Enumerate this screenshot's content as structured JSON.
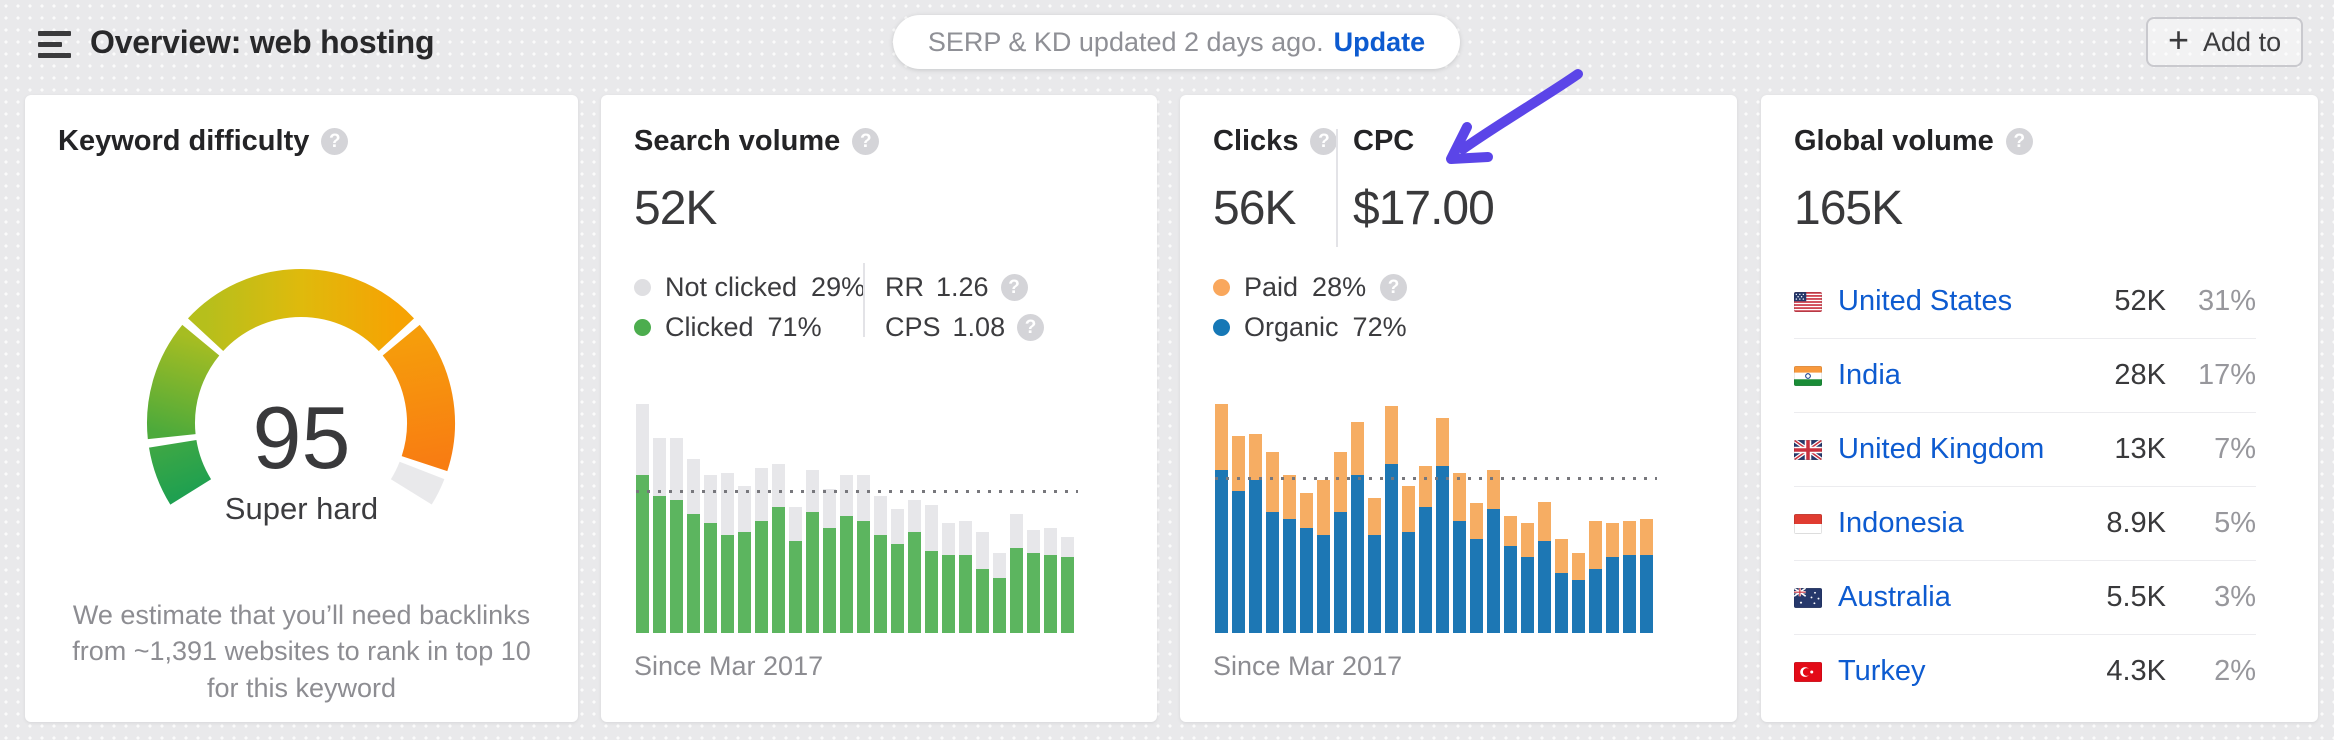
{
  "header": {
    "title": "Overview: web hosting",
    "update_pill": {
      "text": "SERP & KD updated 2 days ago.",
      "action_label": "Update"
    },
    "add_button": {
      "plus": "+",
      "label": "Add to"
    }
  },
  "annotation": {
    "type": "hand-drawn-arrow",
    "points_at": "CPC value",
    "color": "#5b45e8"
  },
  "cards": {
    "keyword_difficulty": {
      "title": "Keyword difficulty",
      "value": "95",
      "level": "Super hard",
      "note": "We estimate that you’ll need backlinks from ~1,391 websites to rank in top 10 for this keyword",
      "gauge": {
        "min": 0,
        "max": 100,
        "value": 95,
        "segments": [
          {
            "range": [
              0,
              10
            ],
            "colors": [
              "#1fa050",
              "#3ca745"
            ]
          },
          {
            "range": [
              10,
              30
            ],
            "colors": [
              "#4caa3b",
              "#a6bd22"
            ]
          },
          {
            "range": [
              30,
              70
            ],
            "colors": [
              "#b6bf1c",
              "#f6a303"
            ]
          },
          {
            "range": [
              70,
              95
            ],
            "colors": [
              "#f69d0b",
              "#f87d12"
            ]
          },
          {
            "range": [
              95,
              100
            ],
            "colors": [
              "#e9e9eb",
              "#e9e9eb"
            ],
            "label": "unfilled remainder"
          }
        ]
      }
    },
    "search_volume": {
      "title": "Search volume",
      "value": "52K",
      "legend": [
        {
          "label": "Not clicked",
          "pct": "29%",
          "color": "#dfdfe2"
        },
        {
          "label": "Clicked",
          "pct": "71%",
          "color": "#4cad4e"
        }
      ],
      "metrics": [
        {
          "label": "RR",
          "value": "1.26"
        },
        {
          "label": "CPS",
          "value": "1.08"
        }
      ],
      "caption": "Since Mar 2017"
    },
    "clicks": {
      "title": "Clicks",
      "cpc_title": "CPC",
      "value": "56K",
      "cpc_value": "$17.00",
      "legend": [
        {
          "label": "Paid",
          "pct": "28%",
          "color": "#f9a75c"
        },
        {
          "label": "Organic",
          "pct": "72%",
          "color": "#1678b6"
        }
      ],
      "caption": "Since Mar 2017"
    },
    "global_volume": {
      "title": "Global volume",
      "value": "165K",
      "countries": [
        {
          "flag": "us",
          "name": "United States",
          "volume": "52K",
          "share": "31%"
        },
        {
          "flag": "in",
          "name": "India",
          "volume": "28K",
          "share": "17%"
        },
        {
          "flag": "gb",
          "name": "United Kingdom",
          "volume": "13K",
          "share": "7%"
        },
        {
          "flag": "id",
          "name": "Indonesia",
          "volume": "8.9K",
          "share": "5%"
        },
        {
          "flag": "au",
          "name": "Australia",
          "volume": "5.5K",
          "share": "3%"
        },
        {
          "flag": "tr",
          "name": "Turkey",
          "volume": "4.3K",
          "share": "2%"
        }
      ]
    }
  },
  "chart_data": [
    {
      "type": "bar",
      "stacked": true,
      "title": "Search volume trend",
      "caption": "Since Mar 2017",
      "x_start_label": "Mar 2017",
      "n_bars": 26,
      "y_unit": "relative height, % of tallest bar (no axis labels shown)",
      "ylim": [
        0,
        100
      ],
      "grid": false,
      "avg_line": 61,
      "series": [
        {
          "name": "Clicked",
          "color": "#5cb55f",
          "values": [
            69,
            60,
            58,
            52,
            48,
            43,
            44,
            49,
            55,
            40,
            53,
            46,
            51,
            49,
            43,
            39,
            44,
            36,
            34,
            34,
            28,
            24,
            37,
            35,
            34,
            33
          ]
        },
        {
          "name": "Not clicked",
          "color": "#e7e7ea",
          "values": [
            31,
            25,
            27,
            24,
            21,
            27,
            20,
            23,
            19,
            15,
            18,
            17,
            18,
            20,
            17,
            15,
            14,
            20,
            14,
            15,
            16,
            11,
            15,
            10,
            12,
            9
          ]
        }
      ]
    },
    {
      "type": "bar",
      "stacked": true,
      "title": "Clicks trend",
      "caption": "Since Mar 2017",
      "x_start_label": "Mar 2017",
      "n_bars": 26,
      "y_unit": "relative height, % of tallest bar (no axis labels shown)",
      "ylim": [
        0,
        100
      ],
      "grid": false,
      "avg_line": 67,
      "series": [
        {
          "name": "Organic",
          "color": "#1d77b4",
          "values": [
            71,
            62,
            67,
            53,
            50,
            46,
            43,
            53,
            69,
            43,
            74,
            44,
            55,
            73,
            49,
            41,
            54,
            38,
            33,
            40,
            26,
            23,
            28,
            33,
            34,
            34
          ]
        },
        {
          "name": "Paid",
          "color": "#f6ad63",
          "values": [
            29,
            24,
            20,
            26,
            19,
            15,
            24,
            26,
            23,
            16,
            25,
            20,
            18,
            21,
            21,
            16,
            17,
            13,
            15,
            17,
            15,
            12,
            21,
            15,
            15,
            16
          ]
        }
      ]
    }
  ]
}
